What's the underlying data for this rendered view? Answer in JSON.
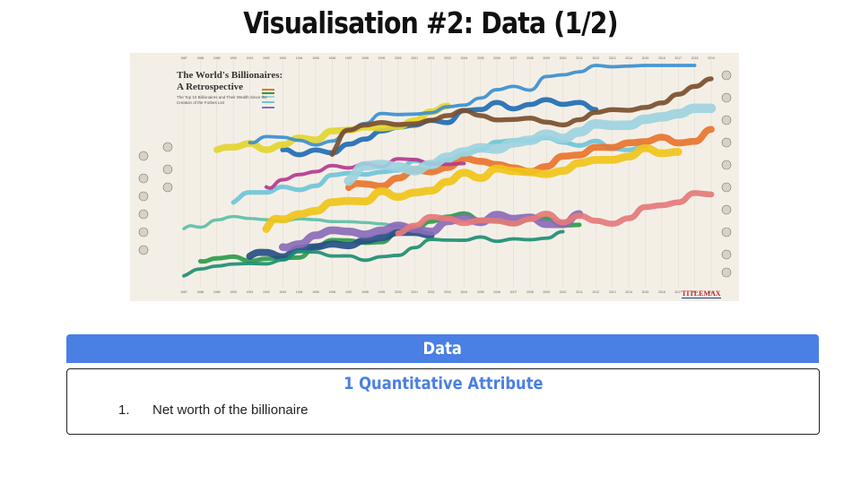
{
  "slide": {
    "title": "Visualisation #2: Data (1/2)"
  },
  "infographic": {
    "title_line1": "The World's Billionaires:",
    "title_line2": "A Retrospective",
    "subtitle": "The Top 10 Billionaires and Their Wealth Since the Creation of the Forbes List",
    "brand": "TITLEMAX",
    "years": [
      "1987",
      "1988",
      "1989",
      "1990",
      "1991",
      "1992",
      "1993",
      "1994",
      "1995",
      "1996",
      "1997",
      "1998",
      "1999",
      "2000",
      "2001",
      "2002",
      "2003",
      "2004",
      "2005",
      "2006",
      "2007",
      "2008",
      "2009",
      "2010",
      "2011",
      "2012",
      "2013",
      "2014",
      "2015",
      "2016",
      "2017",
      "2018",
      "2019"
    ],
    "ribbon_colors": [
      "#1f6db5",
      "#6ec6d8",
      "#2e9a4a",
      "#e2d530",
      "#e8742e",
      "#b53a8e",
      "#274f86",
      "#9dd3e0",
      "#5cbfa8",
      "#8a6bb8",
      "#e57a7a",
      "#3a8fd0",
      "#1d8e73",
      "#f0c419",
      "#7a4f2e"
    ]
  },
  "data_section": {
    "header": "Data",
    "attribute_title": "1 Quantitative Attribute",
    "items": [
      {
        "num": "1.",
        "text": "Net worth of the billionaire"
      }
    ]
  }
}
